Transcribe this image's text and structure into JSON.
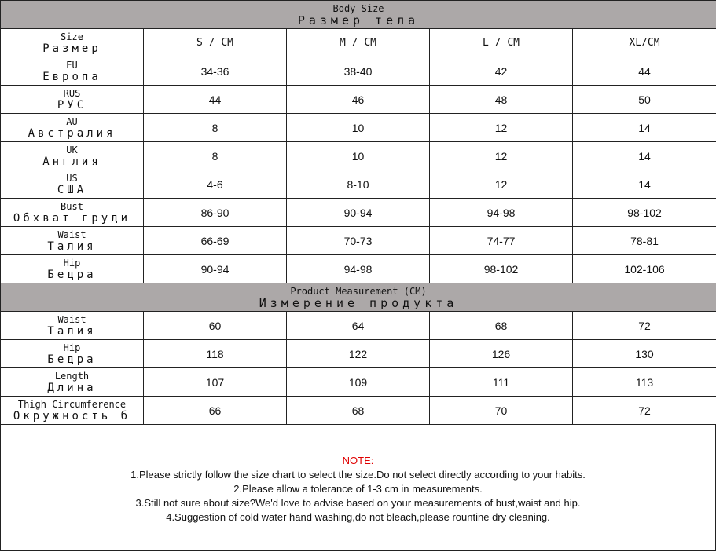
{
  "colors": {
    "header_bg": "#aca8a8",
    "note_title": "#e00000"
  },
  "body_size": {
    "title_en": "Body Size",
    "title_ru": "Размер тела",
    "header": {
      "en": "Size",
      "ru": "Размер",
      "columns": [
        "S / CM",
        "M / CM",
        "L / CM",
        "XL/CM"
      ]
    },
    "rows": [
      {
        "en": "EU",
        "ru": "Европа",
        "values": [
          "34-36",
          "38-40",
          "42",
          "44"
        ]
      },
      {
        "en": "RUS",
        "ru": "РУС",
        "values": [
          "44",
          "46",
          "48",
          "50"
        ]
      },
      {
        "en": "AU",
        "ru": "Австралия",
        "values": [
          "8",
          "10",
          "12",
          "14"
        ]
      },
      {
        "en": "UK",
        "ru": "Англия",
        "values": [
          "8",
          "10",
          "12",
          "14"
        ]
      },
      {
        "en": "US",
        "ru": "США",
        "values": [
          "4-6",
          "8-10",
          "12",
          "14"
        ]
      },
      {
        "en": "Bust",
        "ru": "Обхват груди",
        "values": [
          "86-90",
          "90-94",
          "94-98",
          "98-102"
        ]
      },
      {
        "en": "Waist",
        "ru": "Талия",
        "values": [
          "66-69",
          "70-73",
          "74-77",
          "78-81"
        ]
      },
      {
        "en": "Hip",
        "ru": "Бедра",
        "values": [
          "90-94",
          "94-98",
          "98-102",
          "102-106"
        ]
      }
    ]
  },
  "product": {
    "title_en": "Product Measurement (CM)",
    "title_ru": "Измерение продукта",
    "rows": [
      {
        "en": "Waist",
        "ru": "Талия",
        "values": [
          "60",
          "64",
          "68",
          "72"
        ]
      },
      {
        "en": "Hip",
        "ru": "Бедра",
        "values": [
          "118",
          "122",
          "126",
          "130"
        ]
      },
      {
        "en": "Length",
        "ru": "Длина",
        "values": [
          "107",
          "109",
          "111",
          "113"
        ]
      },
      {
        "en": "Thigh Circumference",
        "ru": "Окружность б",
        "values": [
          "66",
          "68",
          "70",
          "72"
        ]
      }
    ]
  },
  "notes": {
    "title": "NOTE:",
    "lines": [
      "1.Please strictly follow the size chart to select the size.Do not select directly according to your habits.",
      "2.Please allow a tolerance of 1-3 cm in measurements.",
      "3.Still not sure about size?We'd love to advise based on your measurements of bust,waist and hip.",
      "4.Suggestion of cold water hand washing,do not bleach,please rountine dry cleaning."
    ]
  }
}
